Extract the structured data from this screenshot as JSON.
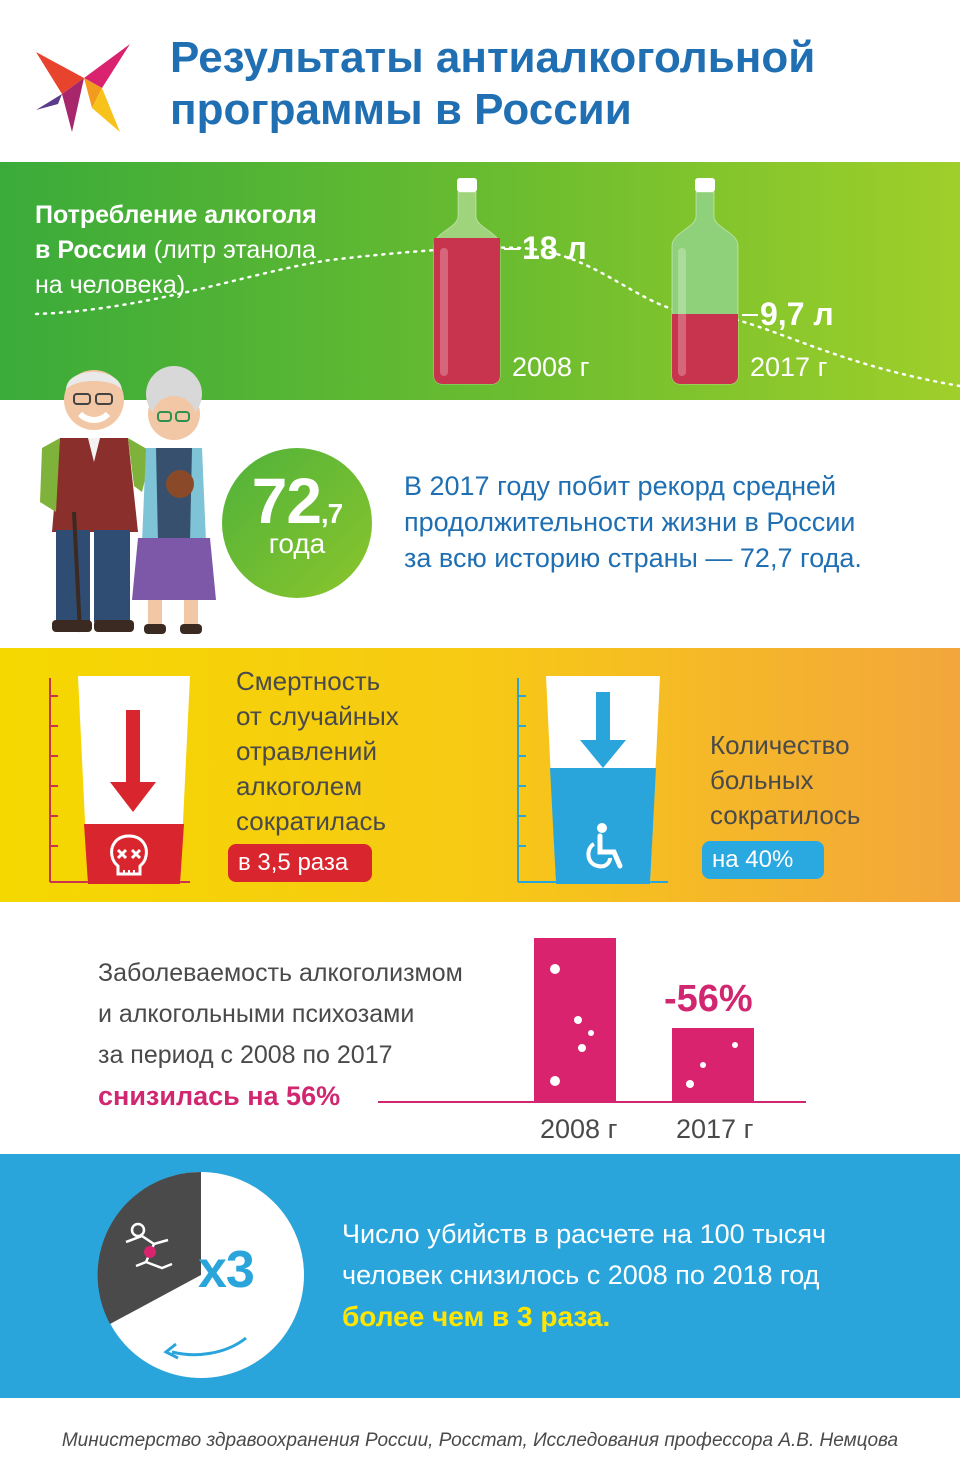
{
  "header": {
    "title_line1": "Результаты антиалкогольной",
    "title_line2": "программы в России"
  },
  "consumption": {
    "label_bold_line1": "Потребление алкоголя",
    "label_bold_line2": "в России",
    "label_regular_line2": " (литр этанола",
    "label_line3": "на человека)",
    "value_2008": "18 л",
    "year_2008": "2008 г",
    "value_2017": "9,7 л",
    "year_2017": "2017 г",
    "fill_2008_fraction": 0.78,
    "fill_2017_fraction": 0.41
  },
  "life_expectancy": {
    "number_int": "72",
    "number_frac": ",7",
    "unit": "года",
    "text_line1": "В 2017 году побит рекорд средней",
    "text_line2": "продолжительности жизни в России",
    "text_line3": "за всю историю страны — 72,7 года."
  },
  "poisoning": {
    "text_line1": "Смертность",
    "text_line2": "от случайных",
    "text_line3": "отравлений",
    "text_line4": "алкоголем",
    "text_line5": "сократилась",
    "badge": "в 3,5 раза"
  },
  "patients": {
    "text_line1": "Количество",
    "text_line2": "больных",
    "text_line3": "сократилось",
    "badge": "на 40%"
  },
  "alcoholism": {
    "text_line1": "Заболеваемость алкоголизмом",
    "text_line2": "и алкогольными психозами",
    "text_line3": "за период с 2008 по 2017",
    "text_highlight": "снизилась на 56%",
    "change_label": "-56%",
    "year_2008": "2008 г",
    "year_2017": "2017 г"
  },
  "murders": {
    "multiplier": "x3",
    "text_line1": "Число убийств в расчете на 100 тысяч",
    "text_line2": "человек снизилось с 2008 по 2018 год",
    "text_highlight": "более чем в 3 раза."
  },
  "source": "Министерство здравоохранения России, Росстат, Исследования профессора А.В. Немцова",
  "colors": {
    "title_blue": "#1f6fb2",
    "green": "#5fb634",
    "wine": "#c8344e",
    "magenta": "#d9236e",
    "blue": "#2aa5dc",
    "yellow_hl": "#ffe600",
    "red_badge": "#d9262e"
  },
  "icons": [
    "bird-logo-icon",
    "bottle-icon",
    "elderly-couple-icon",
    "down-arrow-icon",
    "skull-icon",
    "wheelchair-icon",
    "crime-scene-icon",
    "rotate-arrow-icon"
  ]
}
